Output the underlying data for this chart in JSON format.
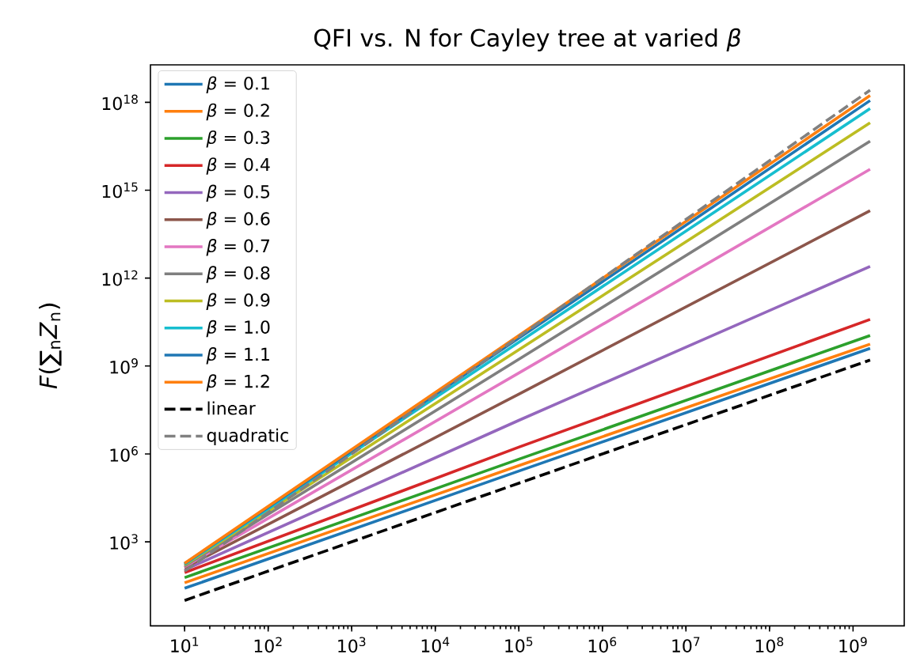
{
  "chart_data": {
    "type": "line",
    "title": "QFI vs. N for Cayley tree at varied *β*",
    "ylabel": "*F*(∑$_{n}$*Z*$_{n}$)",
    "log": "xy",
    "legend": "top left",
    "x": [
      10,
      100000,
      1600000000
    ],
    "xlim": [
      3.9,
      4100000000.0
    ],
    "ylim": [
      1.35,
      1.9e+19
    ],
    "xticks": [
      {
        "value": 10,
        "label": "10$^{1}$"
      },
      {
        "value": 100,
        "label": "10$^{2}$"
      },
      {
        "value": 1000,
        "label": "10$^{3}$"
      },
      {
        "value": 10000,
        "label": "10$^{4}$"
      },
      {
        "value": 100000,
        "label": "10$^{5}$"
      },
      {
        "value": 1000000,
        "label": "10$^{6}$"
      },
      {
        "value": 10000000,
        "label": "10$^{7}$"
      },
      {
        "value": 100000000,
        "label": "10$^{8}$"
      },
      {
        "value": 1000000000,
        "label": "10$^{9}$"
      }
    ],
    "yticks": [
      {
        "value": 1000,
        "label": "10$^{3}$"
      },
      {
        "value": 1000000,
        "label": "10$^{6}$"
      },
      {
        "value": 1000000000,
        "label": "10$^{9}$"
      },
      {
        "value": 1000000000000.0,
        "label": "10$^{12}$"
      },
      {
        "value": 1000000000000000.0,
        "label": "10$^{15}$"
      },
      {
        "value": 1e+18,
        "label": "10$^{18}$"
      }
    ],
    "series": [
      {
        "name": "*β* = 0.1",
        "color": "#1f77b4",
        "values": [
          26,
          260000.0,
          4000000000.0
        ]
      },
      {
        "name": "*β* = 0.2",
        "color": "#ff7f0e",
        "values": [
          40,
          400000.0,
          5600000000.0
        ]
      },
      {
        "name": "*β* = 0.3",
        "color": "#2ca02c",
        "values": [
          60,
          660000.0,
          11000000000.0
        ]
      },
      {
        "name": "*β* = 0.4",
        "color": "#d62728",
        "values": [
          89,
          1700000.0,
          39000000000.0
        ]
      },
      {
        "name": "*β* = 0.5",
        "color": "#9467bd",
        "values": [
          110,
          14000000.0,
          2500000000000.0
        ]
      },
      {
        "name": "*β* = 0.6",
        "color": "#8c564b",
        "values": [
          130,
          110000000.0,
          200000000000000.0
        ]
      },
      {
        "name": "*β* = 0.7",
        "color": "#e377c2",
        "values": [
          140,
          580000000.0,
          5200000000000000.0
        ]
      },
      {
        "name": "*β* = 0.8",
        "color": "#7f7f7f",
        "values": [
          150,
          1700000000.0,
          4.7e+16
        ]
      },
      {
        "name": "*β* = 0.9",
        "color": "#bcbd22",
        "values": [
          160,
          3600000000.0,
          2e+17
        ]
      },
      {
        "name": "*β* = 1.0",
        "color": "#17becf",
        "values": [
          170,
          6500000000.0,
          6.1e+17
        ]
      },
      {
        "name": "*β* = 1.1",
        "color": "#1f77b4",
        "values": [
          180,
          8900000000.0,
          1.15e+18
        ]
      },
      {
        "name": "*β* = 1.2",
        "color": "#ff7f0e",
        "values": [
          185,
          11000000000.0,
          1.7e+18
        ]
      },
      {
        "name": "linear",
        "color": "#000000",
        "line_style": "dashed",
        "values": [
          10,
          100000,
          1600000000
        ]
      },
      {
        "name": "quadratic",
        "color": "#808080",
        "line_style": "dashed",
        "values": [
          100,
          10000000000.0,
          2.6e+18
        ]
      }
    ]
  }
}
